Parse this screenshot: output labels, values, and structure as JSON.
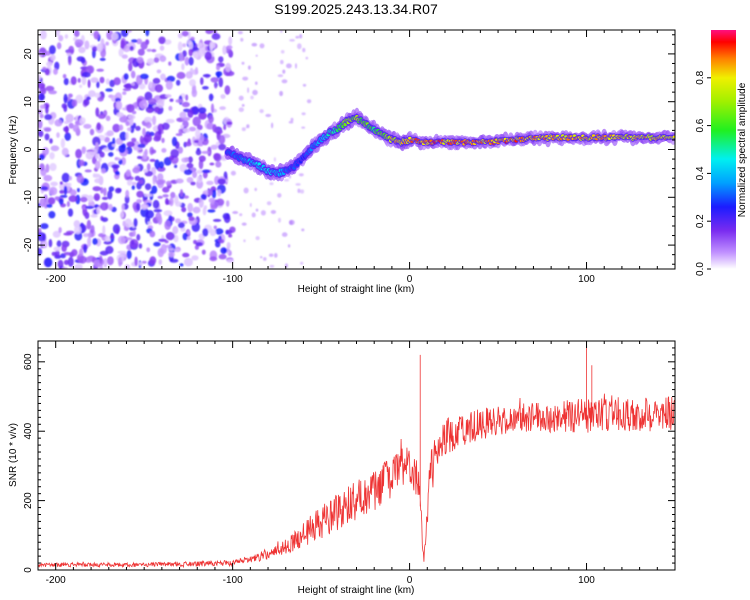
{
  "title": "S199.2025.243.13.34.R07",
  "colors": {
    "snr_line": "#ee3333",
    "frame": "#000000"
  },
  "chart_data": [
    {
      "type": "heatmap",
      "name": "spectrogram",
      "xlabel": "Height of straight line (km)",
      "ylabel": "Frequency (Hz)",
      "xlim": [
        -210,
        150
      ],
      "ylim": [
        -25,
        25
      ],
      "xticks": [
        -200,
        -100,
        0,
        100
      ],
      "yticks": [
        -20,
        -10,
        0,
        10,
        20
      ],
      "colorbar": {
        "label": "Normalized spectral amplitude",
        "range": [
          0,
          1
        ],
        "ticks": [
          0.0,
          0.2,
          0.4,
          0.6,
          0.8
        ],
        "tick_labels": [
          "0.0",
          "0.2",
          "0.4",
          "0.6",
          "0.8"
        ]
      },
      "noise_region_x": [
        -210,
        -100
      ],
      "ridge": {
        "x": [
          -103,
          -95,
          -90,
          -85,
          -80,
          -75,
          -70,
          -65,
          -60,
          -55,
          -50,
          -45,
          -40,
          -35,
          -30,
          -25,
          -20,
          -15,
          -10,
          -5,
          0,
          10,
          20,
          40,
          60,
          80,
          100,
          120,
          150
        ],
        "freq": [
          -0.5,
          -2,
          -2.5,
          -3.5,
          -4.5,
          -5,
          -4.5,
          -3.5,
          -1.5,
          0.5,
          2,
          3.5,
          4.5,
          6,
          6.5,
          5.5,
          4,
          3,
          2,
          1.5,
          2,
          1.5,
          1.5,
          1.5,
          2,
          2.5,
          2.5,
          2.5,
          2.5
        ],
        "amplitude": [
          0.3,
          0.35,
          0.4,
          0.45,
          0.45,
          0.4,
          0.35,
          0.3,
          0.3,
          0.35,
          0.4,
          0.5,
          0.6,
          0.7,
          0.7,
          0.65,
          0.6,
          0.7,
          0.8,
          0.85,
          0.9,
          0.9,
          0.9,
          0.9,
          0.9,
          0.85,
          0.85,
          0.85,
          0.85
        ]
      }
    },
    {
      "type": "line",
      "name": "snr",
      "xlabel": "Height of straight line (km)",
      "ylabel": "SNR (10 * v/v)",
      "xlim": [
        -210,
        150
      ],
      "ylim": [
        0,
        660
      ],
      "xticks": [
        -200,
        -100,
        0,
        100
      ],
      "yticks": [
        0,
        200,
        400,
        600
      ],
      "envelope": {
        "x": [
          -210,
          -150,
          -100,
          -90,
          -80,
          -70,
          -60,
          -50,
          -40,
          -30,
          -20,
          -10,
          0,
          5,
          8,
          10,
          12,
          20,
          30,
          40,
          50,
          60,
          80,
          100,
          120,
          150
        ],
        "mean": [
          15,
          15,
          20,
          30,
          45,
          70,
          100,
          140,
          170,
          200,
          230,
          270,
          310,
          260,
          30,
          160,
          300,
          380,
          400,
          420,
          430,
          440,
          440,
          445,
          450,
          450
        ],
        "noise": [
          6,
          6,
          8,
          10,
          15,
          25,
          40,
          50,
          55,
          60,
          60,
          60,
          55,
          60,
          15,
          50,
          60,
          55,
          50,
          45,
          45,
          45,
          45,
          50,
          50,
          50
        ]
      },
      "spikes": [
        {
          "x": 6,
          "y": 620
        },
        {
          "x": 100,
          "y": 650
        },
        {
          "x": 103,
          "y": 590
        }
      ]
    }
  ]
}
